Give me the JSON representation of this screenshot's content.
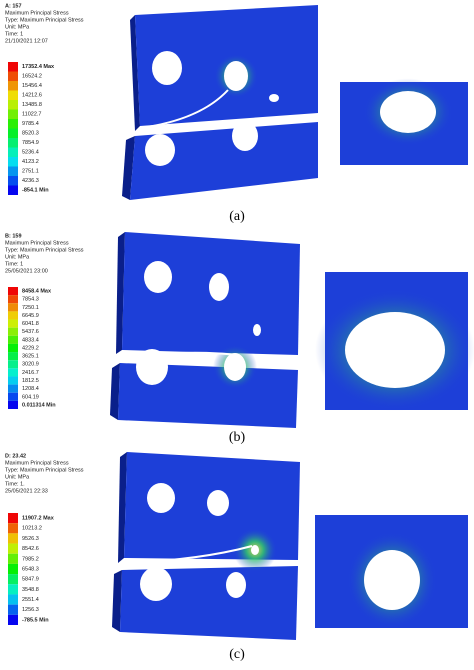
{
  "panels": [
    {
      "header": [
        "A: 157",
        "Maximum Principal Stress",
        "Type: Maximum Principal Stress",
        "Unit: MPa",
        "Time: 1",
        "21/10/2021 12:07"
      ],
      "legend": [
        "17352.4 Max",
        "16524.2",
        "15456.4",
        "14212.6",
        "13485.8",
        "11022.7",
        "9785.4",
        "8520.3",
        "7854.9",
        "5236.4",
        "4123.2",
        "2751.1",
        "4236.3",
        "-854.1 Min"
      ],
      "caption": "(a)"
    },
    {
      "header": [
        "B: 159",
        "Maximum Principal Stress",
        "Type: Maximum Principal Stress",
        "Unit: MPa",
        "Time: 1",
        "25/05/2021 23:00"
      ],
      "legend": [
        "8458.4 Max",
        "7854.3",
        "7250.1",
        "6645.9",
        "6041.8",
        "5437.6",
        "4833.4",
        "4229.2",
        "3625.1",
        "3020.9",
        "2416.7",
        "1812.5",
        "1208.4",
        "604.19",
        "0.011314 Min"
      ],
      "caption": "(b)"
    },
    {
      "header": [
        "D: 23.42",
        "Maximum Principal Stress",
        "Type: Maximum Principal Stress",
        "Unit: MPa",
        "Time: 1.",
        "25/05/2021 22:33"
      ],
      "legend": [
        "11907.2 Max",
        "10213.2",
        "9526.3",
        "8542.6",
        "7985.2",
        "6548.3",
        "5847.9",
        "3548.8",
        "2551.4",
        "1256.3",
        "-785.5 Min"
      ],
      "caption": "(c)"
    }
  ]
}
